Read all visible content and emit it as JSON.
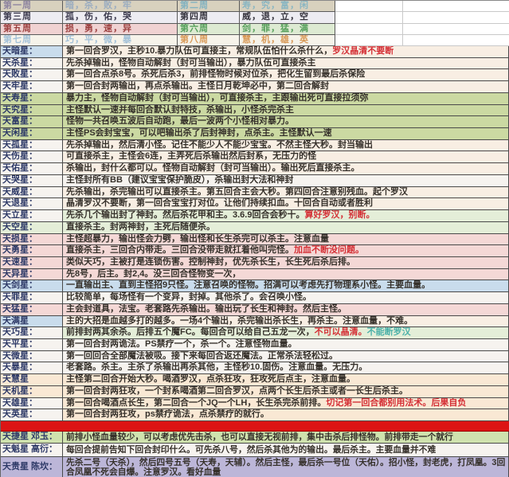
{
  "weeks": {
    "rows": [
      {
        "cells": [
          {
            "text": "第一周",
            "color": "#8e84a0",
            "tint": "tan"
          },
          {
            "text": "暗，杀，败，牢",
            "color": "#9aacc0",
            "tint": "tan"
          },
          {
            "text": "第二周",
            "color": "#82b2c0",
            "tint": "tan"
          },
          {
            "text": "寿，究，富，闲",
            "color": "#8ab6c2",
            "tint": "tan"
          },
          {
            "text": "",
            "color": "",
            "tint": "plain"
          },
          {
            "text": "",
            "color": "",
            "tint": "plain"
          }
        ]
      },
      {
        "cells": [
          {
            "text": "第三周",
            "color": "#3c3a4e",
            "tint": "whitelav"
          },
          {
            "text": "孤，伤，佑，哭",
            "color": "#3c3a4e",
            "tint": "whitelav"
          },
          {
            "text": "第四周",
            "color": "#35333d",
            "tint": "whitelav"
          },
          {
            "text": "威，退，立，空",
            "color": "#35333d",
            "tint": "whitelav"
          },
          {
            "text": "",
            "color": "",
            "tint": "plain"
          },
          {
            "text": "",
            "color": "",
            "tint": "plain"
          }
        ]
      },
      {
        "cells": [
          {
            "text": "第五周",
            "color": "#9c4040",
            "tint": "pinkw"
          },
          {
            "text": "损，勇，速，异",
            "color": "#9c4040",
            "tint": "pinkw"
          },
          {
            "text": "第六周",
            "color": "#57a05c",
            "tint": "lgreenw"
          },
          {
            "text": "剑，罪，猛，满",
            "color": "#57a05c",
            "tint": "lgreenw"
          },
          {
            "text": "",
            "color": "",
            "tint": "plain"
          },
          {
            "text": "",
            "color": "",
            "tint": "plain"
          }
        ]
      },
      {
        "cells": [
          {
            "text": "第七周",
            "color": "#a2c0d8",
            "tint": "creamw"
          },
          {
            "text": "巧，平，微，暴",
            "color": "#a2c0d8",
            "tint": "creamw"
          },
          {
            "text": "第八周",
            "color": "#d89a58",
            "tint": "creamw"
          },
          {
            "text": "慧，机，雄，英",
            "color": "#d89a58",
            "tint": "creamw"
          },
          {
            "text": "",
            "color": "",
            "tint": "plain"
          },
          {
            "text": "",
            "color": "",
            "tint": "plain"
          }
        ]
      }
    ]
  },
  "stars": {
    "rows": [
      {
        "name": "天暗星：",
        "name_tint": "blue",
        "desc_tint": "cream",
        "segments": [
          {
            "text": "第一回合罗汉，主秒10.暴力队伍可直接主，常规队伍怕什么杀什么，",
            "color": "default"
          },
          {
            "text": "罗汉晶清不要断",
            "color": "red"
          }
        ]
      },
      {
        "name": "天杀星：",
        "name_tint": "white",
        "desc_tint": "cream",
        "segments": [
          {
            "text": "先杀掉输出，怪物自动解封（封可当输出），暴力队伍可直接杀主",
            "color": "default"
          }
        ]
      },
      {
        "name": "天败星：",
        "name_tint": "white",
        "desc_tint": "cream",
        "segments": [
          {
            "text": "第一回合点杀8号。杀死后杀3，前排怪物时候对位杀，把化生留到最后杀保险",
            "color": "default"
          }
        ]
      },
      {
        "name": "天牢星：",
        "name_tint": "white",
        "desc_tint": "cream",
        "segments": [
          {
            "text": "第一回合封两输出，再点杀输出。主怪日月乾坤必中，第二回合解封",
            "color": "default"
          }
        ]
      },
      {
        "name": "天寿星：",
        "name_tint": "green",
        "desc_tint": "green",
        "segments": [
          {
            "text": "暴力主，怪物自动解封（封可当输出），可直接杀主，主跟输出死可直接拉须弥",
            "color": "default"
          }
        ]
      },
      {
        "name": "天究星：",
        "name_tint": "green",
        "desc_tint": "green",
        "segments": [
          {
            "text": "主怪默认一速并每回合默认封特技，杀输出，小怪杀完杀主",
            "color": "default"
          }
        ]
      },
      {
        "name": "天富星：",
        "name_tint": "green",
        "desc_tint": "green",
        "segments": [
          {
            "text": "怪物一共召唤五波后自动跑，最后一波两个小怪相对暴力。",
            "color": "default"
          }
        ]
      },
      {
        "name": "天闲星：",
        "name_tint": "green",
        "desc_tint": "green",
        "segments": [
          {
            "text": "主怪PS会封宝宝，可以吧输出杀了后封神封，点杀主。主怪默认一速",
            "color": "default"
          }
        ]
      },
      {
        "name": "天孤星：",
        "name_tint": "white",
        "desc_tint": "cream",
        "segments": [
          {
            "text": "先杀掉输出，然后清小怪。记住不能少人不能少宝宝。不然主怪大秒。封当输出",
            "color": "default"
          }
        ]
      },
      {
        "name": "天伤星：",
        "name_tint": "white",
        "desc_tint": "cream",
        "segments": [
          {
            "text": "可直接杀主，主怪会6连，主弄死后杀输出然后封系，无压力的怪",
            "color": "default"
          }
        ]
      },
      {
        "name": "天佑星：",
        "name_tint": "white",
        "desc_tint": "cream",
        "segments": [
          {
            "text": "杀输出，封什么都可以。怪物自动解封（封可当输出）。输出死后直接杀主。",
            "color": "default"
          }
        ]
      },
      {
        "name": "天哭星：",
        "name_tint": "white",
        "desc_tint": "white",
        "segments": [
          {
            "text": "主怪封所有BB（建议宝宝保护脆皮），杀输出封大法和神封",
            "color": "default"
          }
        ]
      },
      {
        "name": "天威星：",
        "name_tint": "white",
        "desc_tint": "cream",
        "segments": [
          {
            "text": "先杀输出，杀完输出可以直接杀主。第五回合主会大秒。第四回合注意别残血。起个罗汉",
            "color": "default"
          }
        ]
      },
      {
        "name": "天退星：",
        "name_tint": "white",
        "desc_tint": "cream",
        "segments": [
          {
            "text": "晶清罗汉不要断，第一回合宝宝打对位。让他们持续扣血。十回合自动或者胜利",
            "color": "default"
          }
        ]
      },
      {
        "name": "天立星：",
        "name_tint": "white",
        "desc_tint": "lgreen",
        "segments": [
          {
            "text": "先杀几个输出封了神封。然后杀花甲和主。3.6.9回合会秒十。",
            "color": "default"
          },
          {
            "text": "算好罗汉，别断。",
            "color": "red"
          }
        ]
      },
      {
        "name": "天空星：",
        "name_tint": "lgreen",
        "desc_tint": "lgreen",
        "segments": [
          {
            "text": "直接杀主。封两神封，主死后随便杀。",
            "color": "default"
          }
        ]
      },
      {
        "name": "天损星：",
        "name_tint": "pink",
        "desc_tint": "pink",
        "segments": [
          {
            "text": "主怪超暴力，输出怪会力劈，输出怪和长生杀完可以杀主。注意血量",
            "color": "default"
          }
        ]
      },
      {
        "name": "天勇星：",
        "name_tint": "pink",
        "desc_tint": "pink",
        "segments": [
          {
            "text": "直接杀主，三回合内带走。三回合没带走就扛着他叫完怪。",
            "color": "default"
          },
          {
            "text": "加血不断没问题。",
            "color": "red"
          }
        ]
      },
      {
        "name": "天速星：",
        "name_tint": "pink",
        "desc_tint": "pink",
        "segments": [
          {
            "text": "类似天巧，主被打是连锁伤害。控制神封，优先杀长生，长生死后杀后排。",
            "color": "default"
          }
        ]
      },
      {
        "name": "天异星：",
        "name_tint": "pink",
        "desc_tint": "pink",
        "segments": [
          {
            "text": "先8号，后主。封2,4。没三回合怪物变一次，",
            "color": "default"
          }
        ]
      },
      {
        "name": "天剑星：",
        "name_tint": "blue",
        "desc_tint": "blue",
        "segments": [
          {
            "text": "一直输出主、直到主怪招9只怪。注意召唤的怪物。招满可以考虑先打物理系小怪。主要血量。",
            "color": "default"
          }
        ]
      },
      {
        "name": "天罪星：",
        "name_tint": "white",
        "desc_tint": "white",
        "segments": [
          {
            "text": "比较简单，每场怪有一个变异，封掉。其他杀了。会召唤小怪。",
            "color": "default"
          }
        ]
      },
      {
        "name": "天猛星：",
        "name_tint": "pink",
        "desc_tint": "pink",
        "segments": [
          {
            "text": "主会封道具，法宝。老套路先杀输出。输出玩了长生和神封。然后主怪。",
            "color": "default"
          }
        ]
      },
      {
        "name": "天满星",
        "name_tint": "blue",
        "desc_tint": "cream",
        "segments": [
          {
            "text": "主的大招是血越多打的越多。一场4个输出，杀完输出杀长生，再杀主。注意血量，不难。",
            "color": "default"
          }
        ]
      },
      {
        "name": "天巧星：",
        "name_tint": "white",
        "desc_tint": "lgreen",
        "segments": [
          {
            "text": "前排封两其余杀。后排五个魔FC。每回合可以给自己五龙一次，",
            "color": "default"
          },
          {
            "text": "不可以晶清。",
            "color": "red"
          },
          {
            "text": "不能断罗汉",
            "color": "teal"
          }
        ]
      },
      {
        "name": "天平星：",
        "name_tint": "white",
        "desc_tint": "white",
        "segments": [
          {
            "text": "第一回合封两诡法。PS禁疗一个，杀一个。注意怪物血量。",
            "color": "default"
          }
        ]
      },
      {
        "name": "天微星：",
        "name_tint": "white",
        "desc_tint": "white",
        "segments": [
          {
            "text": "第一回回合全部魔法被吸。接下来每回合返还魔法。正常杀法轻松过。",
            "color": "default"
          }
        ]
      },
      {
        "name": "天暴星：",
        "name_tint": "white",
        "desc_tint": "white",
        "segments": [
          {
            "text": "老套路。杀主。主杀了杀输出再杀其他，主怪秒10.固伤。注意血量。无压力。",
            "color": "default"
          }
        ]
      },
      {
        "name": "天慧星",
        "name_tint": "peach",
        "desc_tint": "peach",
        "segments": [
          {
            "text": "主怪第二回合开始大秒。喝酒罗汉，点杀狂攻，狂攻死后点主，注意血量。",
            "color": "default"
          }
        ]
      },
      {
        "name": "天机星：",
        "name_tint": "peach",
        "desc_tint": "peach",
        "segments": [
          {
            "text": "第一回合封两狂攻，一个封系喝酒第二回合罗汉，点两个长生后杀主或者一长生后杀主。",
            "color": "default"
          }
        ]
      },
      {
        "name": "天雄星：",
        "name_tint": "white",
        "desc_tint": "peach",
        "segments": [
          {
            "text": "第一回合喝酒点长生，第二回合一个JQ一个LH，长生杀完杀前排。",
            "color": "default"
          },
          {
            "text": "切记第一回合都别用法术。后果自负",
            "color": "red"
          }
        ]
      },
      {
        "name": "天英星：",
        "name_tint": "white",
        "desc_tint": "peach",
        "segments": [
          {
            "text": "第一回合封两狂攻，ps禁疗诡法，点杀禁疗的就行。",
            "color": "default"
          }
        ]
      }
    ]
  },
  "divider": {
    "color": "#dc1414"
  },
  "bosses": {
    "rows": [
      {
        "name": "天捷星 邓玉：",
        "tint": "bgreen",
        "segments": [
          {
            "text": "前排小怪血量较少，可以考虑优先击杀，也可以直接无视前排，集中击杀后排怪物。前排带走一个就行",
            "color": "default"
          }
        ]
      },
      {
        "name": "天魁星 高衍：",
        "tint": "white",
        "segments": [
          {
            "text": "每回合提前告知下回合封印什么。可先杀八号，然后杀其他为的输出。最后杀主。主要血量并不难",
            "color": "default"
          }
        ]
      },
      {
        "name": "天贵星 陈坎：",
        "tint": "lav",
        "segments": [
          {
            "text": "先杀二号（天杀），然后四号五号（天寿，天辅）。然后主怪，最后杀一号位（天佑）。招小怪，封老虎，打凤凰。3回合凤凰不死会自爆。注意罗汉。看好血量",
            "color": "default"
          }
        ]
      }
    ]
  }
}
